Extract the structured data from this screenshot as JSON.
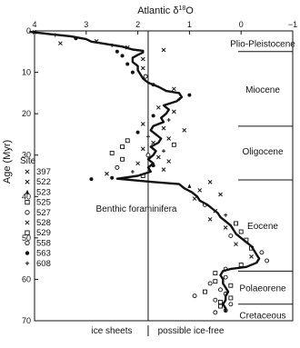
{
  "chart_data": {
    "type": "scatter",
    "title": "Atlantic δ18O",
    "title_parts": {
      "prefix": "Atlantic δ",
      "sup": "18",
      "suffix": "O"
    },
    "ylabel": "Age (Myr)",
    "xlabel": "",
    "x_axis_reversed": true,
    "xlim": [
      4,
      -1
    ],
    "ylim": [
      0,
      70
    ],
    "x_ticks": [
      {
        "value": 4,
        "label": "4"
      },
      {
        "value": 3,
        "label": "3"
      },
      {
        "value": 2,
        "label": "2"
      },
      {
        "value": 1,
        "label": "1"
      },
      {
        "value": 0,
        "label": "0"
      },
      {
        "value": -1,
        "label": "−1"
      }
    ],
    "y_ticks": [
      {
        "value": 0,
        "label": "0"
      },
      {
        "value": 10,
        "label": "10"
      },
      {
        "value": 20,
        "label": "20"
      },
      {
        "value": 30,
        "label": "30"
      },
      {
        "value": 40,
        "label": "40"
      },
      {
        "value": 50,
        "label": "50"
      },
      {
        "value": 60,
        "label": "60"
      },
      {
        "value": 70,
        "label": "70"
      }
    ],
    "grid": false,
    "ice_threshold": 1.8,
    "annotations": {
      "curve_label": "Benthic foraminifera",
      "left_of_threshold": "ice sheets",
      "right_of_threshold": "possible ice-free"
    },
    "epochs": [
      {
        "name": "Plio-Pleistocene",
        "start": 0,
        "end": 5,
        "label_age": 3
      },
      {
        "name": "Miocene",
        "start": 5,
        "end": 23,
        "label_age": 14
      },
      {
        "name": "Oligocene",
        "start": 23,
        "end": 36,
        "label_age": 29
      },
      {
        "name": "Eocene",
        "start": 36,
        "end": 58,
        "label_age": 47
      },
      {
        "name": "Polaeorene",
        "start": 58,
        "end": 66,
        "label_age": 62
      },
      {
        "name": "Cretaceous",
        "start": 66,
        "end": 70,
        "label_age": 68.6
      }
    ],
    "legend": {
      "title": "Site",
      "position": "left-middle",
      "entries": [
        {
          "site": "397",
          "marker": "×"
        },
        {
          "site": "522",
          "marker": "×"
        },
        {
          "site": "523",
          "marker": "▲"
        },
        {
          "site": "525",
          "marker": "□"
        },
        {
          "site": "527",
          "marker": "○"
        },
        {
          "site": "528",
          "marker": "×"
        },
        {
          "site": "529",
          "marker": "□"
        },
        {
          "site": "558",
          "marker": "○"
        },
        {
          "site": "563",
          "marker": "●"
        },
        {
          "site": "608",
          "marker": "+"
        }
      ]
    },
    "series": [
      {
        "name": "Benthic foraminifera",
        "kind": "smoothed-curve",
        "points": [
          [
            4.1,
            0.2
          ],
          [
            3.7,
            0.8
          ],
          [
            3.3,
            1.3
          ],
          [
            3.0,
            2.0
          ],
          [
            2.9,
            2.6
          ],
          [
            2.6,
            3.2
          ],
          [
            2.3,
            3.8
          ],
          [
            2.1,
            4.5
          ],
          [
            1.9,
            4.8
          ],
          [
            1.9,
            5.2
          ],
          [
            2.0,
            5.8
          ],
          [
            2.1,
            6.5
          ],
          [
            2.1,
            7.5
          ],
          [
            2.0,
            8.5
          ],
          [
            2.0,
            9.5
          ],
          [
            1.95,
            10.5
          ],
          [
            1.9,
            11.5
          ],
          [
            1.8,
            12.5
          ],
          [
            1.6,
            13.5
          ],
          [
            1.45,
            14.5
          ],
          [
            1.2,
            15.0
          ],
          [
            1.15,
            16.0
          ],
          [
            1.25,
            17.0
          ],
          [
            1.5,
            18.0
          ],
          [
            1.4,
            19.0
          ],
          [
            1.45,
            20.0
          ],
          [
            1.55,
            21.0
          ],
          [
            1.5,
            22.0
          ],
          [
            1.7,
            23.0
          ],
          [
            1.75,
            24.0
          ],
          [
            1.65,
            25.0
          ],
          [
            1.55,
            26.0
          ],
          [
            1.6,
            27.0
          ],
          [
            1.75,
            28.0
          ],
          [
            1.65,
            29.0
          ],
          [
            1.7,
            30.0
          ],
          [
            1.8,
            31.0
          ],
          [
            1.7,
            32.0
          ],
          [
            1.8,
            33.0
          ],
          [
            1.75,
            34.0
          ],
          [
            2.0,
            35.0
          ],
          [
            2.4,
            35.7
          ],
          [
            1.7,
            36.5
          ],
          [
            1.2,
            37.0
          ],
          [
            1.1,
            38.0
          ],
          [
            0.95,
            39.0
          ],
          [
            0.85,
            40.0
          ],
          [
            0.8,
            41.0
          ],
          [
            0.65,
            42.0
          ],
          [
            0.55,
            43.0
          ],
          [
            0.45,
            44.0
          ],
          [
            0.4,
            45.0
          ],
          [
            0.3,
            46.0
          ],
          [
            0.2,
            47.0
          ],
          [
            0.15,
            48.0
          ],
          [
            0.1,
            49.0
          ],
          [
            0.0,
            50.0
          ],
          [
            -0.1,
            51.0
          ],
          [
            -0.2,
            52.0
          ],
          [
            -0.25,
            53.0
          ],
          [
            -0.3,
            54.0
          ],
          [
            -0.35,
            55.0
          ],
          [
            -0.3,
            56.0
          ],
          [
            -0.1,
            57.0
          ],
          [
            0.2,
            57.5
          ],
          [
            0.35,
            58.0
          ],
          [
            0.4,
            59.0
          ],
          [
            0.35,
            60.0
          ],
          [
            0.35,
            61.0
          ],
          [
            0.3,
            62.0
          ],
          [
            0.25,
            63.0
          ],
          [
            0.3,
            64.0
          ],
          [
            0.3,
            65.0
          ],
          [
            0.35,
            66.0
          ],
          [
            0.3,
            67.0
          ],
          [
            0.3,
            68.0
          ]
        ]
      },
      {
        "name": "Site data",
        "kind": "scatter",
        "points": [
          {
            "x": 4.0,
            "y": 0.3,
            "m": "×"
          },
          {
            "x": 3.6,
            "y": 1.0,
            "m": "+"
          },
          {
            "x": 3.2,
            "y": 1.8,
            "m": "●"
          },
          {
            "x": 2.8,
            "y": 2.5,
            "m": "×"
          },
          {
            "x": 3.5,
            "y": 3.0,
            "m": "×"
          },
          {
            "x": 2.5,
            "y": 3.5,
            "m": "+"
          },
          {
            "x": 2.2,
            "y": 4.0,
            "m": "×"
          },
          {
            "x": 1.5,
            "y": 4.6,
            "m": "×"
          },
          {
            "x": 2.4,
            "y": 5.0,
            "m": "●"
          },
          {
            "x": 2.3,
            "y": 6.0,
            "m": "●"
          },
          {
            "x": 1.9,
            "y": 6.8,
            "m": "×"
          },
          {
            "x": 2.2,
            "y": 8.0,
            "m": "●"
          },
          {
            "x": 1.9,
            "y": 9.0,
            "m": "×"
          },
          {
            "x": 2.1,
            "y": 10.0,
            "m": "●"
          },
          {
            "x": 1.85,
            "y": 11.0,
            "m": "○"
          },
          {
            "x": 1.7,
            "y": 13.0,
            "m": "●"
          },
          {
            "x": 1.3,
            "y": 14.0,
            "m": "×"
          },
          {
            "x": 1.0,
            "y": 15.5,
            "m": "●"
          },
          {
            "x": 1.2,
            "y": 16.5,
            "m": "+"
          },
          {
            "x": 1.6,
            "y": 18.5,
            "m": "×"
          },
          {
            "x": 1.3,
            "y": 19.5,
            "m": "×"
          },
          {
            "x": 1.7,
            "y": 20.5,
            "m": "●"
          },
          {
            "x": 1.4,
            "y": 21.5,
            "m": "+"
          },
          {
            "x": 1.9,
            "y": 22.5,
            "m": "×"
          },
          {
            "x": 1.5,
            "y": 23.5,
            "m": "×"
          },
          {
            "x": 1.1,
            "y": 24.0,
            "m": "×"
          },
          {
            "x": 2.0,
            "y": 24.5,
            "m": "●"
          },
          {
            "x": 1.8,
            "y": 25.5,
            "m": "+"
          },
          {
            "x": 1.4,
            "y": 26.0,
            "m": "×"
          },
          {
            "x": 2.2,
            "y": 26.5,
            "m": "□"
          },
          {
            "x": 1.7,
            "y": 27.0,
            "m": "×"
          },
          {
            "x": 1.3,
            "y": 27.5,
            "m": "□"
          },
          {
            "x": 2.3,
            "y": 28.0,
            "m": "□"
          },
          {
            "x": 1.9,
            "y": 28.5,
            "m": "×"
          },
          {
            "x": 1.5,
            "y": 29.0,
            "m": "+"
          },
          {
            "x": 2.5,
            "y": 29.5,
            "m": "□"
          },
          {
            "x": 1.8,
            "y": 30.0,
            "m": "○"
          },
          {
            "x": 1.6,
            "y": 30.5,
            "m": "×"
          },
          {
            "x": 2.3,
            "y": 31.0,
            "m": "□"
          },
          {
            "x": 1.4,
            "y": 31.5,
            "m": "×"
          },
          {
            "x": 2.0,
            "y": 32.0,
            "m": "×"
          },
          {
            "x": 1.7,
            "y": 32.5,
            "m": "●"
          },
          {
            "x": 2.4,
            "y": 33.0,
            "m": "○"
          },
          {
            "x": 1.5,
            "y": 33.5,
            "m": "×"
          },
          {
            "x": 2.1,
            "y": 34.0,
            "m": "+"
          },
          {
            "x": 2.6,
            "y": 34.5,
            "m": "×"
          },
          {
            "x": 1.9,
            "y": 35.0,
            "m": "□"
          },
          {
            "x": 2.5,
            "y": 35.5,
            "m": "●"
          },
          {
            "x": 2.9,
            "y": 35.8,
            "m": "●"
          },
          {
            "x": 0.6,
            "y": 36.5,
            "m": "×"
          },
          {
            "x": 1.0,
            "y": 37.5,
            "m": "▲"
          },
          {
            "x": 0.8,
            "y": 38.5,
            "m": "×"
          },
          {
            "x": 0.4,
            "y": 39.5,
            "m": "×"
          },
          {
            "x": 0.9,
            "y": 40.5,
            "m": "×"
          },
          {
            "x": 0.7,
            "y": 42.0,
            "m": "○"
          },
          {
            "x": 0.5,
            "y": 43.5,
            "m": "×"
          },
          {
            "x": 0.3,
            "y": 44.5,
            "m": "+"
          },
          {
            "x": 0.6,
            "y": 45.5,
            "m": "×"
          },
          {
            "x": 0.1,
            "y": 46.5,
            "m": "□"
          },
          {
            "x": 0.3,
            "y": 47.5,
            "m": "×"
          },
          {
            "x": 0.0,
            "y": 48.5,
            "m": "□"
          },
          {
            "x": 0.2,
            "y": 49.5,
            "m": "○"
          },
          {
            "x": -0.1,
            "y": 50.5,
            "m": "□"
          },
          {
            "x": 0.1,
            "y": 51.5,
            "m": "×"
          },
          {
            "x": -0.2,
            "y": 52.5,
            "m": "□"
          },
          {
            "x": -0.4,
            "y": 53.5,
            "m": "○"
          },
          {
            "x": -0.2,
            "y": 54.5,
            "m": "×"
          },
          {
            "x": -0.5,
            "y": 55.5,
            "m": "○"
          },
          {
            "x": 0.0,
            "y": 56.5,
            "m": "□"
          },
          {
            "x": 0.3,
            "y": 57.5,
            "m": "○"
          },
          {
            "x": 0.5,
            "y": 58.5,
            "m": "□"
          },
          {
            "x": 0.3,
            "y": 59.5,
            "m": "○"
          },
          {
            "x": 0.5,
            "y": 60.5,
            "m": "□"
          },
          {
            "x": 0.6,
            "y": 61.0,
            "m": "○"
          },
          {
            "x": 0.2,
            "y": 61.5,
            "m": "□"
          },
          {
            "x": 0.4,
            "y": 62.5,
            "m": "○"
          },
          {
            "x": 0.7,
            "y": 63.0,
            "m": "□"
          },
          {
            "x": 0.3,
            "y": 63.5,
            "m": "○"
          },
          {
            "x": 0.9,
            "y": 64.0,
            "m": "○"
          },
          {
            "x": 0.2,
            "y": 64.5,
            "m": "□"
          },
          {
            "x": 0.5,
            "y": 65.0,
            "m": "○"
          },
          {
            "x": 0.4,
            "y": 65.5,
            "m": "□"
          },
          {
            "x": 0.2,
            "y": 66.0,
            "m": "○"
          },
          {
            "x": 0.4,
            "y": 66.5,
            "m": "□"
          },
          {
            "x": 0.3,
            "y": 67.5,
            "m": "○"
          },
          {
            "x": 0.5,
            "y": 68.0,
            "m": "○"
          }
        ]
      }
    ]
  }
}
